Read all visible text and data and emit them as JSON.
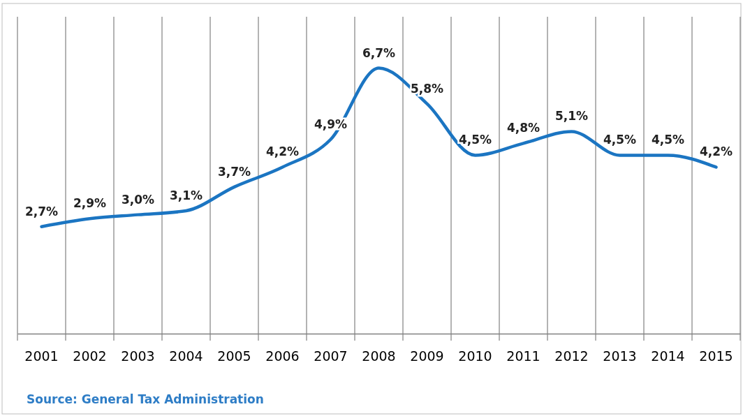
{
  "chart_data": {
    "type": "line",
    "categories": [
      "2001",
      "2002",
      "2003",
      "2004",
      "2005",
      "2006",
      "2007",
      "2008",
      "2009",
      "2010",
      "2011",
      "2012",
      "2013",
      "2014",
      "2015"
    ],
    "series": [
      {
        "color": "#1b75c2",
        "values": [
          2.7,
          2.9,
          3.0,
          3.1,
          3.7,
          4.2,
          4.9,
          6.7,
          5.8,
          4.5,
          4.8,
          5.1,
          4.5,
          4.5,
          4.2
        ],
        "value_labels": [
          "2,7%",
          "2,9%",
          "3,0%",
          "3,1%",
          "3,7%",
          "4,2%",
          "4,9%",
          "6,7%",
          "5,8%",
          "4,5%",
          "4,8%",
          "5,1%",
          "4,5%",
          "4,5%",
          "4,2%"
        ]
      }
    ],
    "grid": "x",
    "marker": "none",
    "line_style": "solid",
    "tick_labels": "x",
    "annotations": [
      "Source: General Tax Administration"
    ]
  }
}
